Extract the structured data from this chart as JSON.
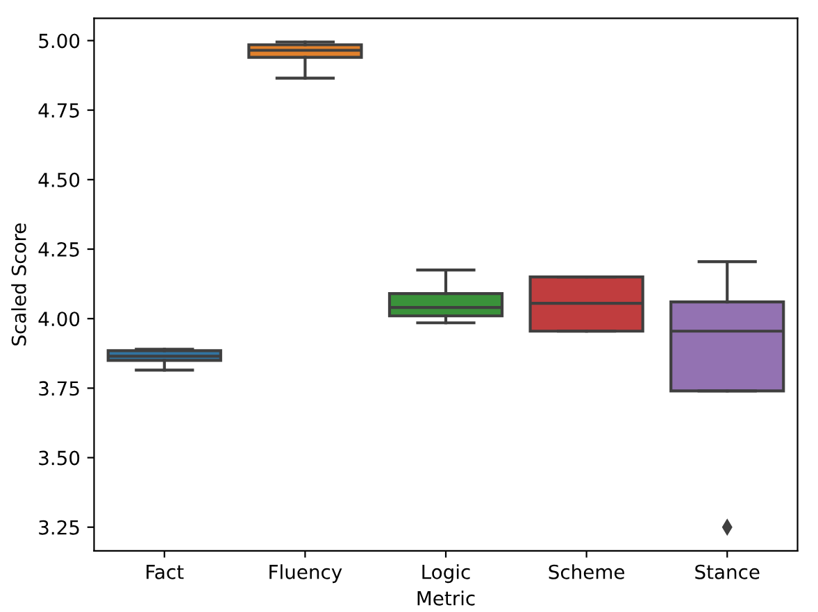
{
  "chart_data": {
    "type": "box",
    "xlabel": "Metric",
    "ylabel": "Scaled Score",
    "categories": [
      "Fact",
      "Fluency",
      "Logic",
      "Scheme",
      "Stance"
    ],
    "colors": [
      "#3274a1",
      "#e1812c",
      "#3a923a",
      "#c03d3e",
      "#9372b2"
    ],
    "boxes": [
      {
        "low": 3.815,
        "q1": 3.85,
        "median": 3.865,
        "q3": 3.885,
        "high": 3.89
      },
      {
        "low": 4.865,
        "q1": 4.94,
        "median": 4.965,
        "q3": 4.985,
        "high": 4.995
      },
      {
        "low": 3.985,
        "q1": 4.01,
        "median": 4.04,
        "q3": 4.09,
        "high": 4.175
      },
      {
        "low": 3.955,
        "q1": 3.955,
        "median": 4.055,
        "q3": 4.15,
        "high": 4.15
      },
      {
        "low": 3.74,
        "q1": 3.74,
        "median": 3.955,
        "q3": 4.06,
        "high": 4.205,
        "outliers": [
          3.25
        ]
      }
    ],
    "ylim": [
      3.165,
      5.08
    ],
    "yticks": [
      3.25,
      {
        "value": 3.5,
        "label": "3.50"
      },
      3.75,
      {
        "value": 4,
        "label": "4.00"
      },
      4.25,
      {
        "value": 4.5,
        "label": "4.50"
      },
      4.75,
      {
        "value": 5,
        "label": "5.00"
      }
    ],
    "grid": false,
    "marker": "diamond"
  }
}
